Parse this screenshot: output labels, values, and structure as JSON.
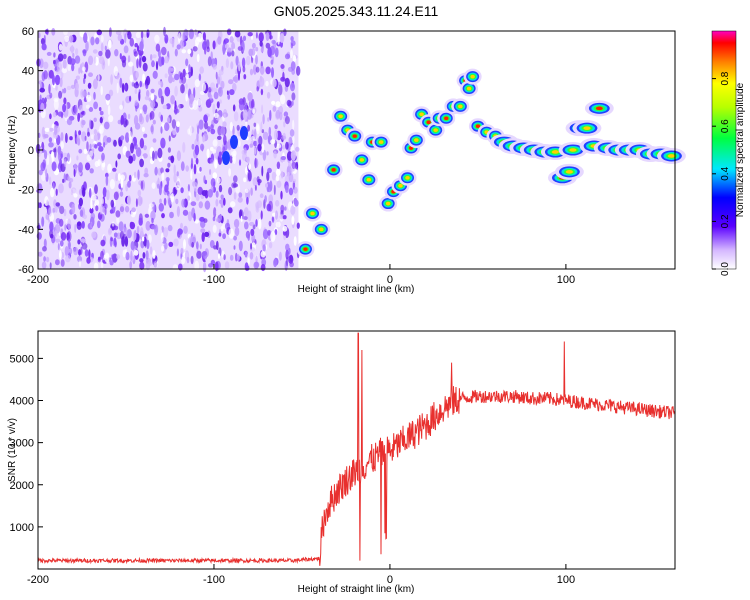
{
  "title": "GN05.2025.343.11.24.E11",
  "chart_data": [
    {
      "type": "heatmap",
      "name": "spectrogram",
      "xlabel": "Height of straight line (km)",
      "ylabel": "Frequency (Hz)",
      "xlim": [
        -200,
        162
      ],
      "ylim": [
        -60,
        60
      ],
      "xticks": [
        -200,
        -100,
        0,
        100
      ],
      "yticks": [
        -60,
        -40,
        -20,
        0,
        20,
        40,
        60
      ],
      "noise_region_x": [
        -200,
        -52
      ],
      "signal_ridge": [
        {
          "x": -48,
          "y": -50
        },
        {
          "x": -44,
          "y": -32
        },
        {
          "x": -39,
          "y": -40
        },
        {
          "x": -32,
          "y": -10
        },
        {
          "x": -28,
          "y": 17
        },
        {
          "x": -24,
          "y": 10
        },
        {
          "x": -20,
          "y": 7
        },
        {
          "x": -16,
          "y": -5
        },
        {
          "x": -12,
          "y": -15
        },
        {
          "x": -10,
          "y": 4
        },
        {
          "x": -5,
          "y": 4
        },
        {
          "x": -1,
          "y": -27
        },
        {
          "x": 2,
          "y": -21
        },
        {
          "x": 6,
          "y": -18
        },
        {
          "x": 10,
          "y": -14
        },
        {
          "x": 12,
          "y": 1
        },
        {
          "x": 15,
          "y": 5
        },
        {
          "x": 18,
          "y": 18
        },
        {
          "x": 22,
          "y": 14
        },
        {
          "x": 26,
          "y": 10
        },
        {
          "x": 28,
          "y": 16
        },
        {
          "x": 32,
          "y": 16
        },
        {
          "x": 36,
          "y": 22
        },
        {
          "x": 40,
          "y": 22
        },
        {
          "x": 43,
          "y": 35
        },
        {
          "x": 45,
          "y": 31
        },
        {
          "x": 47,
          "y": 37
        },
        {
          "x": 50,
          "y": 12
        },
        {
          "x": 55,
          "y": 9
        },
        {
          "x": 60,
          "y": 7
        },
        {
          "x": 65,
          "y": 4
        },
        {
          "x": 70,
          "y": 2
        },
        {
          "x": 76,
          "y": 1
        },
        {
          "x": 82,
          "y": 0
        },
        {
          "x": 88,
          "y": -1
        },
        {
          "x": 94,
          "y": -1
        },
        {
          "x": 98,
          "y": -14
        },
        {
          "x": 102,
          "y": -11
        },
        {
          "x": 104,
          "y": 0
        },
        {
          "x": 108,
          "y": 11
        },
        {
          "x": 112,
          "y": 11
        },
        {
          "x": 116,
          "y": 2
        },
        {
          "x": 119,
          "y": 21
        },
        {
          "x": 124,
          "y": 1
        },
        {
          "x": 130,
          "y": 0
        },
        {
          "x": 136,
          "y": 0
        },
        {
          "x": 142,
          "y": 0
        },
        {
          "x": 148,
          "y": -2
        },
        {
          "x": 154,
          "y": -2
        },
        {
          "x": 160,
          "y": -3
        }
      ],
      "colorbar": {
        "label": "Normalized spectral amplitude",
        "range": [
          0,
          1
        ],
        "ticks": [
          0.0,
          0.2,
          0.4,
          0.6,
          0.8
        ],
        "tick_labels": [
          "0.0",
          "0.2",
          "0.4",
          "0.6",
          "0.8"
        ]
      }
    },
    {
      "type": "line",
      "name": "snr",
      "xlabel": "Height of straight line (km)",
      "ylabel": "SNR (10 * v/v)",
      "xlim": [
        -200,
        162
      ],
      "ylim": [
        0,
        5650
      ],
      "xticks": [
        -200,
        -100,
        0,
        100
      ],
      "yticks": [
        1000,
        2000,
        3000,
        4000,
        5000
      ],
      "color": "#e8302e",
      "series": [
        {
          "name": "SNR",
          "points": [
            {
              "x": -200,
              "y": 200
            },
            {
              "x": -150,
              "y": 200
            },
            {
              "x": -100,
              "y": 200
            },
            {
              "x": -55,
              "y": 200
            },
            {
              "x": -40,
              "y": 250
            },
            {
              "x": -38,
              "y": 1100
            },
            {
              "x": -35,
              "y": 1500
            },
            {
              "x": -30,
              "y": 1850
            },
            {
              "x": -25,
              "y": 2100
            },
            {
              "x": -20,
              "y": 2300
            },
            {
              "x": -15,
              "y": 2450
            },
            {
              "x": -10,
              "y": 2600
            },
            {
              "x": -5,
              "y": 2750
            },
            {
              "x": 0,
              "y": 2800
            },
            {
              "x": 5,
              "y": 2950
            },
            {
              "x": 10,
              "y": 3100
            },
            {
              "x": 15,
              "y": 3250
            },
            {
              "x": 20,
              "y": 3400
            },
            {
              "x": 25,
              "y": 3600
            },
            {
              "x": 30,
              "y": 3800
            },
            {
              "x": 35,
              "y": 3950
            },
            {
              "x": 40,
              "y": 4050
            },
            {
              "x": 50,
              "y": 4100
            },
            {
              "x": 60,
              "y": 4100
            },
            {
              "x": 70,
              "y": 4100
            },
            {
              "x": 80,
              "y": 4050
            },
            {
              "x": 90,
              "y": 4050
            },
            {
              "x": 100,
              "y": 4000
            },
            {
              "x": 110,
              "y": 3950
            },
            {
              "x": 120,
              "y": 3900
            },
            {
              "x": 130,
              "y": 3850
            },
            {
              "x": 140,
              "y": 3800
            },
            {
              "x": 150,
              "y": 3750
            },
            {
              "x": 162,
              "y": 3700
            }
          ]
        }
      ],
      "spikes": [
        {
          "x": -18,
          "y": 5600
        },
        {
          "x": -17,
          "y": 200
        },
        {
          "x": -16,
          "y": 5200
        },
        {
          "x": 35,
          "y": 4900
        },
        {
          "x": 99,
          "y": 5400
        }
      ]
    }
  ]
}
